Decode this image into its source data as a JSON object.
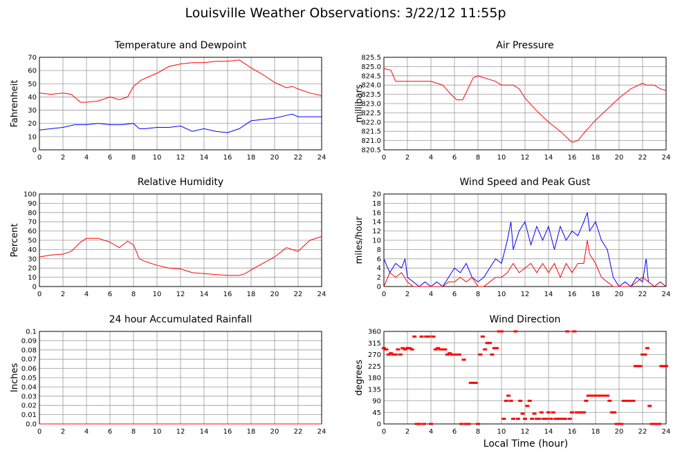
{
  "title": "Louisville Weather Observations: 3/22/12 11:55p",
  "x_axis_label": "Local Time (hour)",
  "colors": {
    "red": "#ff0000",
    "blue": "#0000ff",
    "grid": "#999999"
  },
  "chart_data": [
    {
      "id": "temp",
      "type": "line",
      "title": "Temperature and Dewpoint",
      "ylabel": "Fahrenheit",
      "xlim": [
        0,
        24
      ],
      "ylim": [
        0,
        70
      ],
      "yticks": [
        "0",
        "10",
        "20",
        "30",
        "40",
        "50",
        "60",
        "70"
      ],
      "xticks": [
        "0",
        "2",
        "4",
        "6",
        "8",
        "10",
        "12",
        "14",
        "16",
        "18",
        "20",
        "22",
        "24"
      ],
      "series": [
        {
          "color": "red",
          "x": [
            0,
            1,
            2,
            2.7,
            3.5,
            4,
            5,
            6,
            6.8,
            7.5,
            8,
            8.7,
            10,
            11,
            12,
            13,
            14,
            15,
            16,
            17,
            18,
            19,
            20,
            21,
            21.5,
            22,
            23,
            24
          ],
          "values": [
            43,
            42,
            43,
            42,
            36,
            36,
            37,
            40,
            38,
            40,
            48,
            53,
            58,
            63,
            65,
            66,
            66,
            67,
            67,
            68,
            62,
            57,
            51,
            47,
            48,
            46,
            43,
            41
          ]
        },
        {
          "color": "blue",
          "x": [
            0,
            1,
            2,
            3,
            4,
            5,
            6,
            7,
            8,
            8.5,
            9,
            10,
            11,
            12,
            13,
            14,
            15,
            16,
            17,
            18,
            19,
            20,
            21,
            21.5,
            22,
            23,
            24
          ],
          "values": [
            15,
            16,
            17,
            19,
            19,
            20,
            19,
            19,
            20,
            16,
            16,
            17,
            17,
            18,
            14,
            16,
            14,
            13,
            16,
            22,
            23,
            24,
            26,
            27,
            25,
            25,
            25
          ]
        }
      ]
    },
    {
      "id": "pressure",
      "type": "line",
      "title": "Air Pressure",
      "ylabel": "millibars",
      "xlim": [
        0,
        24
      ],
      "ylim": [
        820.5,
        825.5
      ],
      "yticks": [
        "820.5",
        "821.0",
        "821.5",
        "822.0",
        "822.5",
        "823.0",
        "823.5",
        "824.0",
        "824.5",
        "825.0",
        "825.5"
      ],
      "xticks": [
        "0",
        "2",
        "4",
        "6",
        "8",
        "10",
        "12",
        "14",
        "16",
        "18",
        "20",
        "22",
        "24"
      ],
      "series": [
        {
          "color": "red",
          "x": [
            0,
            0.6,
            1,
            2,
            3,
            4,
            4.5,
            5,
            5.7,
            6.2,
            6.7,
            7.3,
            7.6,
            8,
            8.5,
            9,
            9.5,
            10,
            11,
            11.5,
            12,
            13,
            14,
            15,
            15.5,
            16,
            16.5,
            17,
            18,
            19,
            19.5,
            20,
            21,
            22,
            22.3,
            23,
            23.5,
            24
          ],
          "values": [
            824.9,
            824.8,
            824.2,
            824.2,
            824.2,
            824.2,
            824.1,
            824.0,
            823.5,
            823.2,
            823.2,
            824.0,
            824.4,
            824.5,
            824.4,
            824.3,
            824.2,
            824.0,
            824.0,
            823.8,
            823.3,
            822.6,
            822.0,
            821.5,
            821.2,
            820.9,
            821.0,
            821.4,
            822.1,
            822.7,
            823.0,
            823.3,
            823.8,
            824.1,
            824.0,
            824.0,
            823.8,
            823.7
          ]
        }
      ]
    },
    {
      "id": "humidity",
      "type": "line",
      "title": "Relative Humidity",
      "ylabel": "Percent",
      "xlim": [
        0,
        24
      ],
      "ylim": [
        0,
        100
      ],
      "yticks": [
        "0",
        "10",
        "20",
        "30",
        "40",
        "50",
        "60",
        "70",
        "80",
        "90",
        "100"
      ],
      "xticks": [
        "0",
        "2",
        "4",
        "6",
        "8",
        "10",
        "12",
        "14",
        "16",
        "18",
        "20",
        "22",
        "24"
      ],
      "series": [
        {
          "color": "red",
          "x": [
            0,
            1,
            2,
            2.7,
            3.5,
            4,
            5,
            6,
            6.8,
            7.5,
            8,
            8.5,
            9,
            10,
            11,
            12,
            13,
            14,
            15,
            16,
            17,
            17.5,
            18,
            19,
            20,
            21,
            21.5,
            22,
            23,
            24
          ],
          "values": [
            32,
            34,
            35,
            38,
            48,
            52,
            52,
            48,
            42,
            49,
            45,
            30,
            27,
            23,
            20,
            19,
            15,
            14,
            13,
            12,
            12,
            14,
            18,
            25,
            32,
            42,
            40,
            38,
            50,
            54
          ]
        }
      ]
    },
    {
      "id": "wind",
      "type": "line",
      "title": "Wind Speed and Peak Gust",
      "ylabel": "miles/hour",
      "xlim": [
        0,
        24
      ],
      "ylim": [
        0,
        20
      ],
      "yticks": [
        "0",
        "2",
        "4",
        "6",
        "8",
        "10",
        "12",
        "14",
        "16",
        "18",
        "20"
      ],
      "xticks": [
        "0",
        "2",
        "4",
        "6",
        "8",
        "10",
        "12",
        "14",
        "16",
        "18",
        "20",
        "22",
        "24"
      ],
      "series": [
        {
          "color": "blue",
          "x": [
            0,
            0.5,
            1,
            1.5,
            1.8,
            2,
            2.5,
            3,
            3.5,
            4,
            4.5,
            5,
            5.5,
            6,
            6.5,
            7,
            7.5,
            8,
            8.5,
            9,
            9.5,
            10,
            10.5,
            10.8,
            11,
            11.5,
            12,
            12.5,
            13,
            13.5,
            14,
            14.5,
            15,
            15.5,
            16,
            16.5,
            17,
            17.3,
            17.5,
            18,
            18.5,
            19,
            19.5,
            20,
            20.5,
            21,
            21.5,
            22,
            22.3,
            22.5,
            23,
            23.5,
            24
          ],
          "values": [
            6,
            3,
            5,
            4,
            6,
            2,
            1,
            0,
            1,
            0,
            1,
            0,
            2,
            4,
            3,
            5,
            2,
            1,
            2,
            4,
            6,
            5,
            10,
            14,
            8,
            12,
            14,
            9,
            13,
            10,
            13,
            8,
            13,
            10,
            12,
            11,
            14,
            16,
            12,
            14,
            10,
            8,
            2,
            0,
            1,
            0,
            2,
            1,
            6,
            1,
            0,
            1,
            0
          ]
        },
        {
          "color": "red",
          "x": [
            0,
            0.5,
            1,
            1.5,
            2,
            2.5,
            3,
            3.5,
            4,
            5,
            5.5,
            6,
            6.5,
            7,
            7.5,
            8,
            8.5,
            9,
            9.5,
            10,
            10.5,
            11,
            11.5,
            12,
            12.5,
            13,
            13.5,
            14,
            14.5,
            15,
            15.5,
            16,
            16.5,
            17,
            17.3,
            17.5,
            18,
            18.5,
            19,
            19.5,
            20,
            20.5,
            21,
            21.5,
            22,
            22.5,
            23,
            23.5,
            24
          ],
          "values": [
            0,
            3,
            2,
            3,
            1,
            0,
            0,
            0,
            0,
            0,
            1,
            1,
            2,
            1,
            2,
            0,
            0,
            1,
            2,
            2,
            3,
            5,
            3,
            4,
            5,
            3,
            5,
            3,
            5,
            2,
            5,
            3,
            5,
            5,
            10,
            7,
            5,
            2,
            1,
            0,
            0,
            0,
            0,
            1,
            2,
            1,
            0,
            1,
            0
          ]
        }
      ]
    },
    {
      "id": "rain",
      "type": "line",
      "title": "24 hour Accumulated Rainfall",
      "ylabel": "Inches",
      "xlim": [
        0,
        24
      ],
      "ylim": [
        0,
        0.1
      ],
      "yticks": [
        "0.0",
        "0.01",
        "0.02",
        "0.03",
        "0.04",
        "0.05",
        "0.06",
        "0.07",
        "0.08",
        "0.09",
        "0.1"
      ],
      "xticks": [
        "0",
        "2",
        "4",
        "6",
        "8",
        "10",
        "12",
        "14",
        "16",
        "18",
        "20",
        "22",
        "24"
      ],
      "series": [
        {
          "color": "red",
          "x": [
            0,
            24
          ],
          "values": [
            0,
            0
          ]
        }
      ]
    },
    {
      "id": "direction",
      "type": "scatter",
      "title": "Wind Direction",
      "ylabel": "degrees",
      "xlim": [
        0,
        24
      ],
      "ylim": [
        0,
        360
      ],
      "yticks": [
        "0",
        "45",
        "90",
        "135",
        "180",
        "225",
        "270",
        "315",
        "360"
      ],
      "xticks": [
        "0",
        "2",
        "4",
        "6",
        "8",
        "10",
        "12",
        "14",
        "16",
        "18",
        "20",
        "22",
        "24"
      ],
      "series": [
        {
          "color": "red",
          "x": [
            0,
            0.2,
            0.4,
            0.6,
            0.8,
            1.0,
            1.2,
            1.4,
            1.6,
            1.8,
            2.0,
            2.2,
            2.4,
            2.6,
            2.8,
            3.0,
            3.2,
            3.4,
            3.6,
            3.8,
            4.0,
            4.2,
            4.4,
            4.6,
            4.8,
            5.0,
            5.2,
            5.4,
            5.6,
            5.8,
            6.0,
            6.2,
            6.4,
            6.6,
            6.8,
            7.0,
            7.2,
            7.4,
            7.6,
            7.8,
            8.0,
            8.2,
            8.4,
            8.6,
            8.8,
            9.0,
            9.2,
            9.4,
            9.6,
            9.8,
            10.0,
            10.2,
            10.4,
            10.6,
            10.8,
            11.0,
            11.2,
            11.4,
            11.6,
            11.8,
            12.0,
            12.2,
            12.4,
            12.6,
            12.8,
            13.0,
            13.2,
            13.4,
            13.6,
            13.8,
            14.0,
            14.2,
            14.4,
            14.6,
            14.8,
            15.0,
            15.2,
            15.4,
            15.6,
            15.8,
            16.0,
            16.2,
            16.4,
            16.6,
            16.8,
            17.0,
            17.2,
            17.4,
            17.6,
            17.8,
            18.0,
            18.2,
            18.4,
            18.6,
            18.8,
            19.0,
            19.2,
            19.4,
            19.6,
            19.8,
            20.0,
            20.2,
            20.4,
            20.6,
            20.8,
            21.0,
            21.2,
            21.4,
            21.6,
            21.8,
            22.0,
            22.2,
            22.4,
            22.6,
            22.8,
            23.0,
            23.2,
            23.4,
            23.6,
            23.8,
            24.0
          ],
          "values": [
            295,
            290,
            270,
            275,
            270,
            270,
            290,
            270,
            295,
            290,
            295,
            295,
            290,
            340,
            0,
            0,
            340,
            0,
            340,
            340,
            0,
            340,
            290,
            295,
            290,
            290,
            290,
            270,
            275,
            270,
            270,
            270,
            270,
            0,
            250,
            0,
            0,
            160,
            160,
            160,
            0,
            270,
            340,
            290,
            315,
            315,
            270,
            295,
            295,
            360,
            360,
            20,
            90,
            110,
            90,
            20,
            360,
            20,
            90,
            40,
            20,
            70,
            90,
            20,
            40,
            20,
            20,
            45,
            20,
            20,
            45,
            20,
            45,
            20,
            20,
            20,
            20,
            20,
            360,
            20,
            45,
            360,
            45,
            45,
            45,
            45,
            90,
            110,
            110,
            110,
            110,
            110,
            110,
            110,
            110,
            110,
            90,
            45,
            45,
            0,
            0,
            0,
            90,
            90,
            90,
            90,
            90,
            225,
            225,
            225,
            270,
            270,
            295,
            70,
            0,
            0,
            0,
            0,
            225,
            225,
            225
          ]
        }
      ]
    }
  ]
}
